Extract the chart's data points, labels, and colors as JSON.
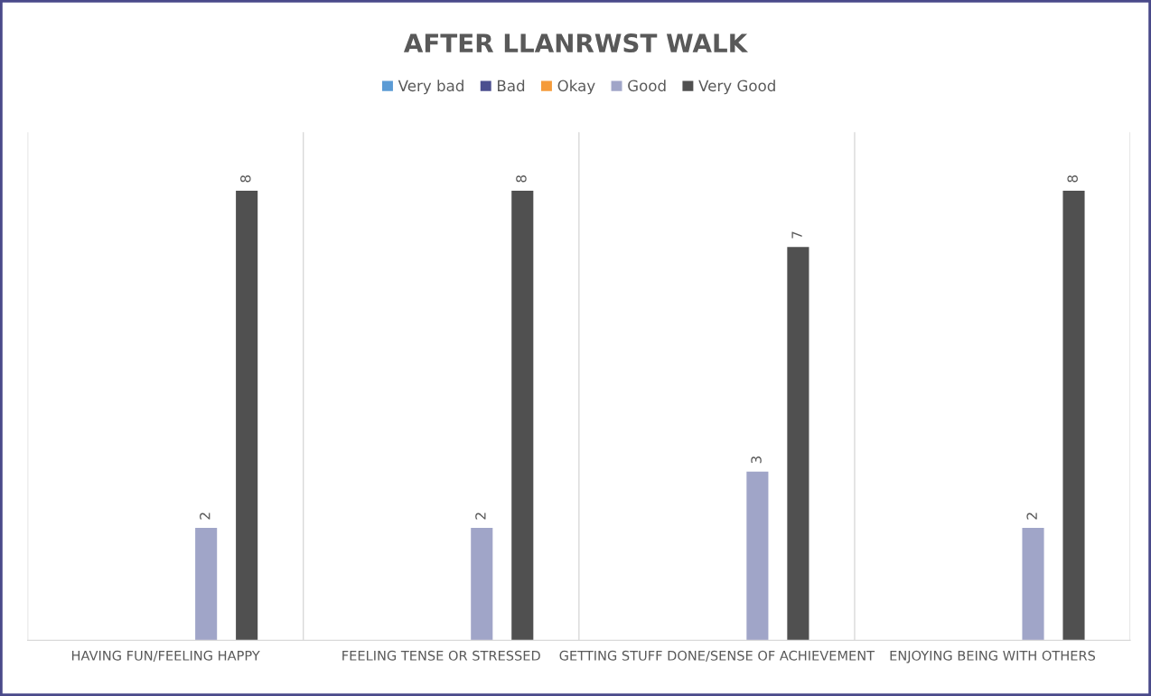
{
  "chart_data": {
    "type": "bar",
    "title": "AFTER LLANRWST WALK",
    "categories": [
      "HAVING FUN/FEELING HAPPY",
      "FEELING TENSE OR STRESSED",
      "GETTING STUFF DONE/SENSE OF ACHIEVEMENT",
      "ENJOYING BEING WITH OTHERS"
    ],
    "series": [
      {
        "name": "Very bad",
        "color": "#5b9bd5",
        "values": [
          null,
          null,
          null,
          null
        ]
      },
      {
        "name": "Bad",
        "color": "#4b4f8f",
        "values": [
          null,
          null,
          null,
          null
        ]
      },
      {
        "name": "Okay",
        "color": "#f59b3a",
        "values": [
          null,
          null,
          null,
          null
        ]
      },
      {
        "name": "Good",
        "color": "#a0a5c8",
        "values": [
          2,
          2,
          3,
          2
        ]
      },
      {
        "name": "Very Good",
        "color": "#505050",
        "values": [
          8,
          8,
          7,
          8
        ]
      }
    ],
    "data_labels": true,
    "legend": "top",
    "grid": "x",
    "tick_labels": "x"
  }
}
